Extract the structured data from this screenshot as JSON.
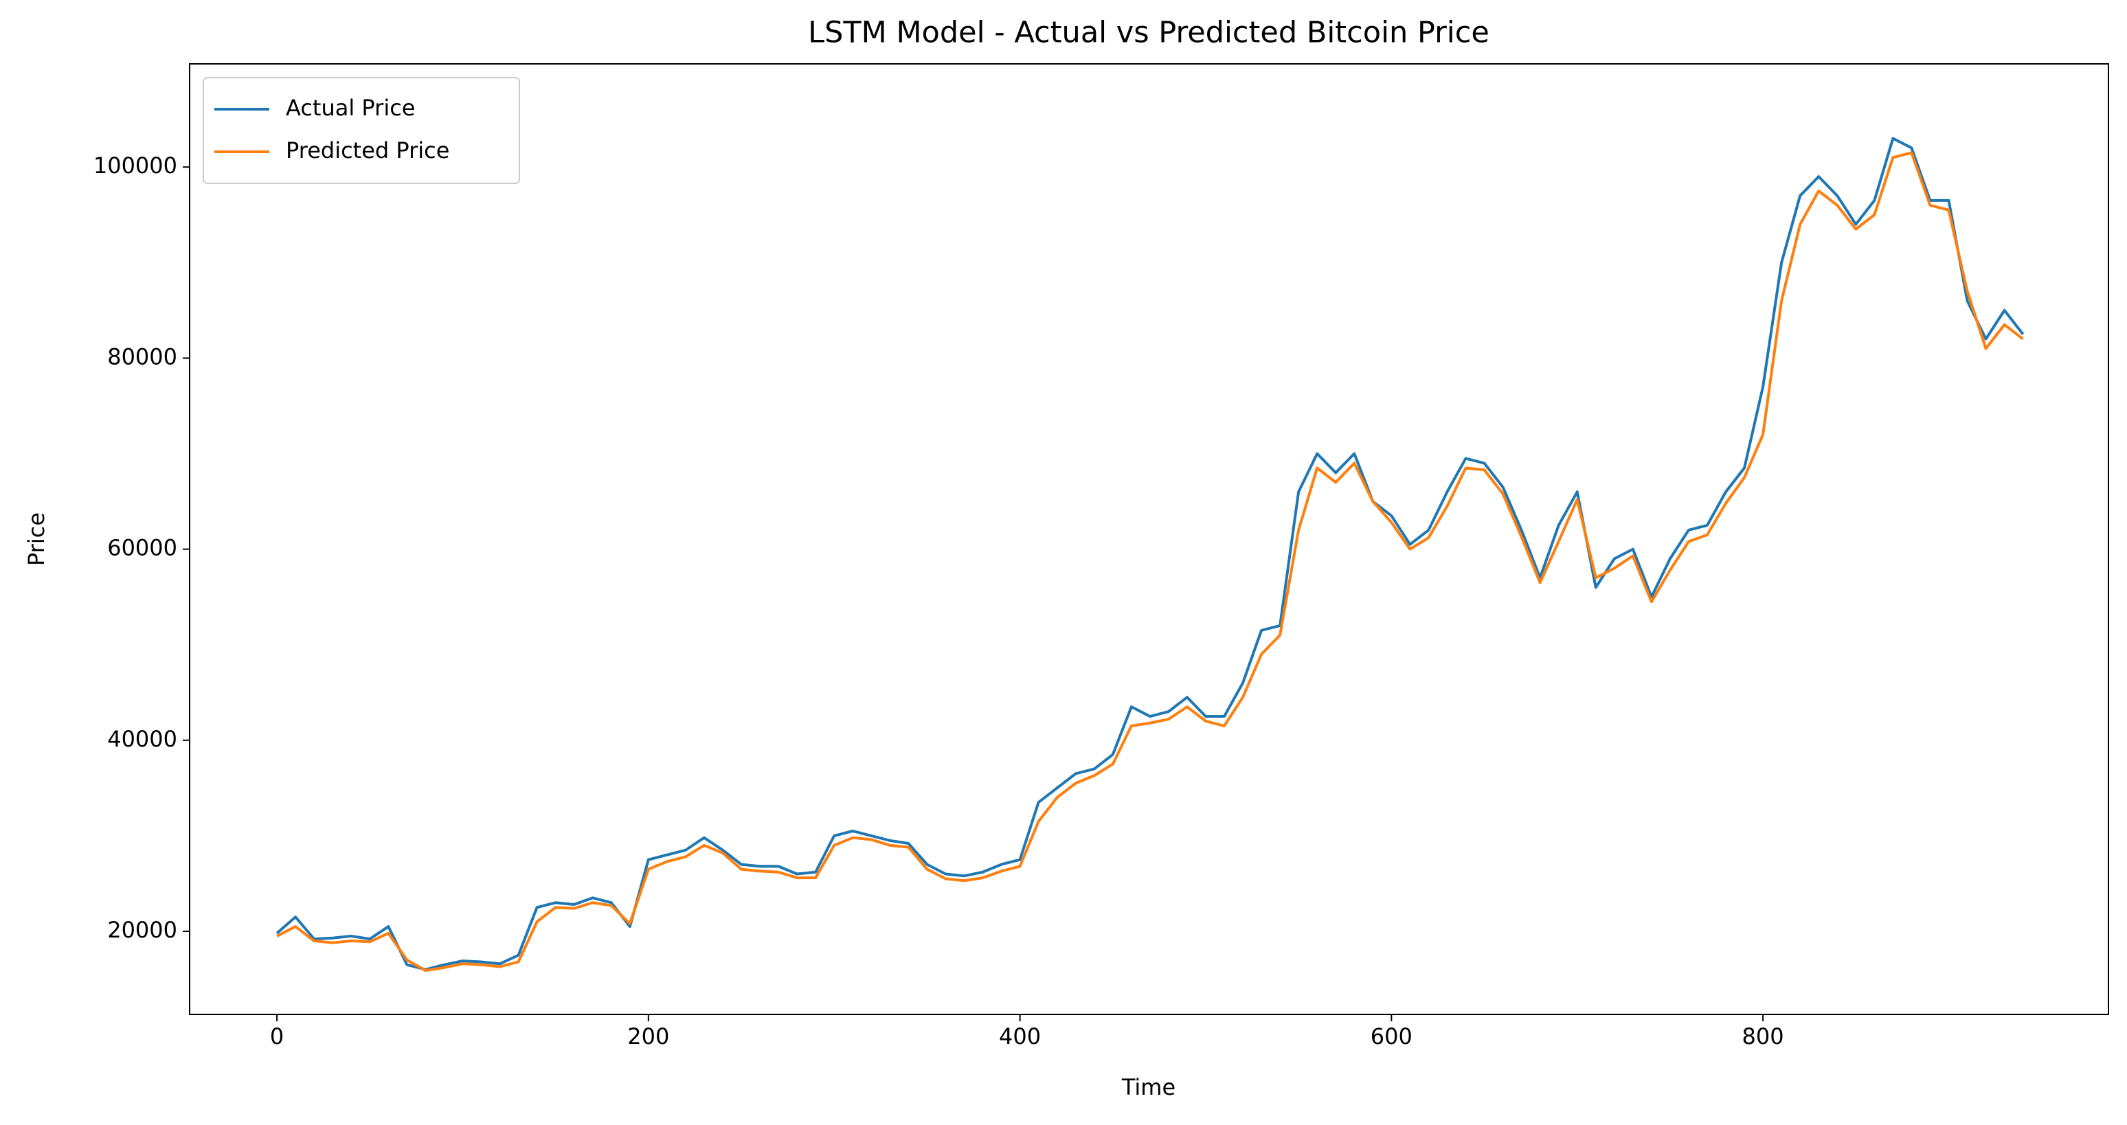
{
  "chart_data": {
    "type": "line",
    "title": "LSTM Model - Actual vs Predicted Bitcoin Price",
    "xlabel": "Time",
    "ylabel": "Price",
    "x": [
      0,
      10,
      20,
      30,
      40,
      50,
      60,
      70,
      80,
      90,
      100,
      110,
      120,
      130,
      140,
      150,
      160,
      170,
      180,
      190,
      200,
      210,
      220,
      230,
      240,
      250,
      260,
      270,
      280,
      290,
      300,
      310,
      320,
      330,
      340,
      350,
      360,
      370,
      380,
      390,
      400,
      410,
      420,
      430,
      440,
      450,
      460,
      470,
      480,
      490,
      500,
      510,
      520,
      530,
      540,
      550,
      560,
      570,
      580,
      590,
      600,
      610,
      620,
      630,
      640,
      650,
      660,
      670,
      680,
      690,
      700,
      710,
      720,
      730,
      740,
      750,
      760,
      770,
      780,
      790,
      800,
      810,
      820,
      830,
      840,
      850,
      860,
      870,
      880,
      890,
      900,
      910,
      920,
      930,
      940
    ],
    "series": [
      {
        "name": "Actual Price",
        "color": "#1f77b4",
        "values": [
          19800,
          21500,
          19200,
          19300,
          19500,
          19200,
          20500,
          16500,
          16000,
          16500,
          16900,
          16800,
          16600,
          17500,
          22500,
          23000,
          22800,
          23500,
          23000,
          20500,
          27500,
          28000,
          28500,
          29800,
          28500,
          27000,
          26800,
          26800,
          26000,
          26200,
          30000,
          30500,
          30000,
          29500,
          29200,
          27000,
          26000,
          25800,
          26200,
          27000,
          27500,
          33500,
          35000,
          36500,
          37000,
          38500,
          43500,
          42500,
          43000,
          44500,
          42500,
          42500,
          46000,
          51500,
          52000,
          66000,
          70000,
          68000,
          70000,
          65000,
          63500,
          60500,
          62000,
          66000,
          69500,
          69000,
          66500,
          62000,
          57000,
          62500,
          66000,
          56000,
          59000,
          60000,
          55000,
          59000,
          62000,
          62500,
          66000,
          68500,
          77000,
          90000,
          97000,
          99000,
          97000,
          94000,
          96500,
          103000,
          102000,
          96500,
          96500,
          86000,
          82000,
          85000,
          82500
        ]
      },
      {
        "name": "Predicted Price",
        "color": "#ff7f0e",
        "values": [
          19500,
          20500,
          19000,
          18800,
          19000,
          18900,
          19800,
          17000,
          15900,
          16200,
          16600,
          16500,
          16300,
          16800,
          21000,
          22500,
          22400,
          23000,
          22700,
          20800,
          26500,
          27300,
          27800,
          29000,
          28200,
          26500,
          26300,
          26200,
          25600,
          25600,
          29000,
          29800,
          29600,
          29000,
          28800,
          26500,
          25500,
          25300,
          25600,
          26300,
          26800,
          31500,
          34000,
          35500,
          36300,
          37500,
          41500,
          41800,
          42200,
          43500,
          42000,
          41500,
          44500,
          49000,
          51000,
          62000,
          68500,
          67000,
          69000,
          65000,
          62800,
          60000,
          61200,
          64500,
          68500,
          68300,
          65800,
          61300,
          56500,
          60800,
          65200,
          57000,
          58000,
          59300,
          54500,
          57800,
          60800,
          61500,
          64800,
          67500,
          72000,
          86000,
          94000,
          97500,
          96000,
          93500,
          95000,
          101000,
          101500,
          96000,
          95500,
          87000,
          81000,
          83500,
          82000
        ]
      }
    ],
    "xlim": [
      -47,
      986
    ],
    "xticks": [
      0,
      200,
      400,
      600,
      800
    ],
    "ylim": [
      11300,
      110800
    ],
    "yticks": [
      20000,
      40000,
      60000,
      80000,
      100000
    ],
    "legend": "upper left"
  }
}
